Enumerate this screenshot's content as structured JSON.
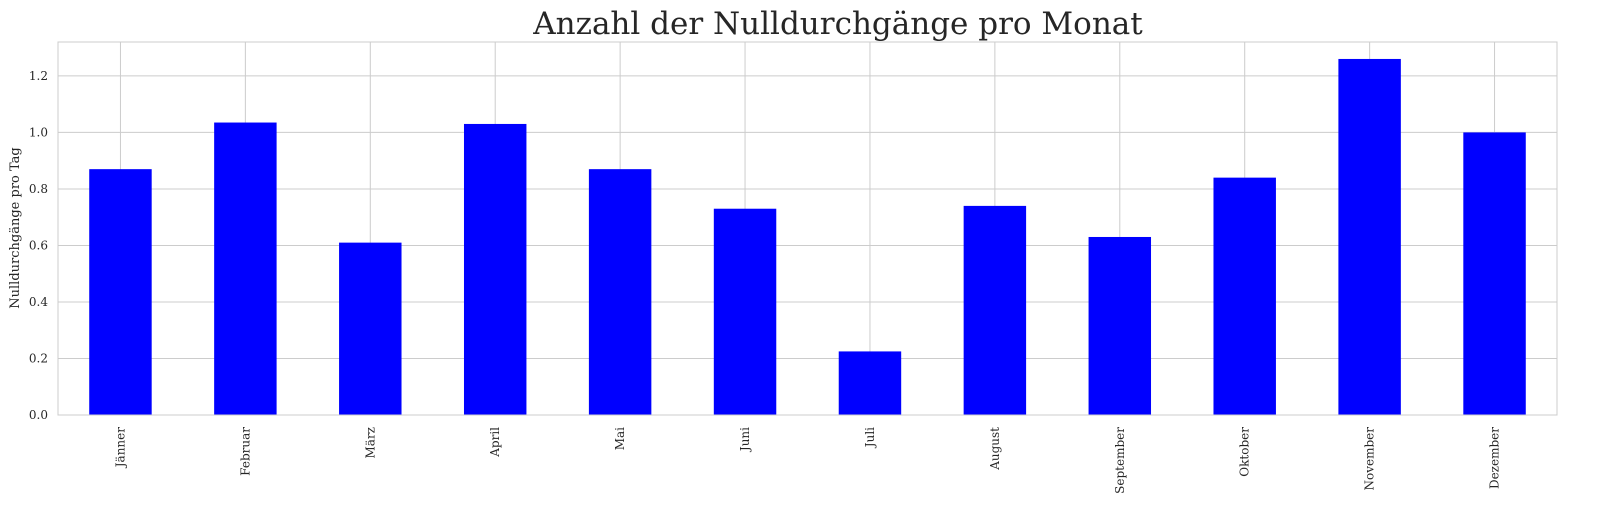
{
  "chart_data": {
    "type": "bar",
    "title": "Anzahl der Nulldurchgänge pro Monat",
    "xlabel": "",
    "ylabel": "Nulldurchgänge pro Tag",
    "categories": [
      "Jänner",
      "Februar",
      "März",
      "April",
      "Mai",
      "Juni",
      "Juli",
      "August",
      "September",
      "Oktober",
      "November",
      "Dezember"
    ],
    "values": [
      0.87,
      1.035,
      0.61,
      1.03,
      0.87,
      0.73,
      0.225,
      0.74,
      0.63,
      0.84,
      1.26,
      1.0
    ],
    "ylim": [
      0,
      1.32
    ],
    "yticks": [
      0.0,
      0.2,
      0.4,
      0.6,
      0.8,
      1.0,
      1.2
    ],
    "ytick_labels": [
      "0.0",
      "0.2",
      "0.4",
      "0.6",
      "0.8",
      "1.0",
      "1.2"
    ],
    "bar_color": "#0000ff",
    "grid": true,
    "legend": "none"
  }
}
